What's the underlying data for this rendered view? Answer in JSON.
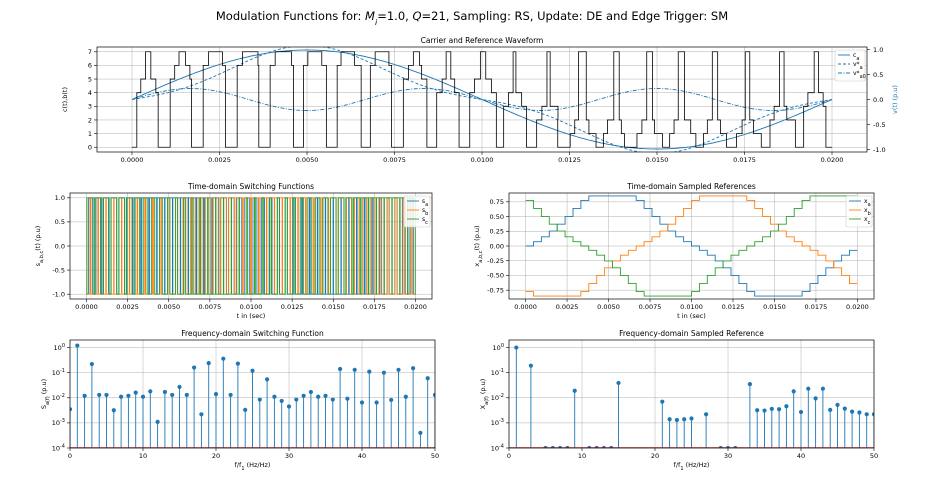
{
  "figure": {
    "suptitle": "Modulation Functions for: M_i=1.0, Q=21, Sampling: RS, Update: DE and Edge Trigger: SM"
  },
  "colors": {
    "blue": "#1f77b4",
    "orange": "#ff7f0e",
    "green": "#2ca02c",
    "grid": "#b0b0b0"
  },
  "chart_data": [
    {
      "id": "carrier",
      "type": "line",
      "title": "Carrier and Reference Waveform",
      "xlabel": "",
      "ylabel": "c(t),b(t)",
      "ylabel_right": "v(t) (p.u)",
      "xlim": [
        -0.001,
        0.021
      ],
      "ylim": [
        -0.35,
        7.35
      ],
      "ylim_right": [
        -1.05,
        1.05
      ],
      "xticks": [
        "0.0000",
        "0.0025",
        "0.0050",
        "0.0075",
        "0.0100",
        "0.0125",
        "0.0150",
        "0.0175",
        "0.0200"
      ],
      "yticks": [
        "0",
        "1",
        "2",
        "3",
        "4",
        "5",
        "6",
        "7"
      ],
      "yticks_right": [
        "-1.0",
        "-0.5",
        "0.0",
        "0.5",
        "1.0"
      ],
      "grid": true,
      "legend": "top-right",
      "series": [
        {
          "name": "c_a",
          "style": "solid",
          "color": "#1f77b4",
          "note": "sine, amplitude 1.0, period 0.02 s"
        },
        {
          "name": "v*_a",
          "style": "dashed",
          "color": "#1f77b4",
          "note": "third-harmonic modified reference"
        },
        {
          "name": "v*_a0",
          "style": "dashdot",
          "color": "#1f77b4",
          "note": "third-harmonic zero sequence, amplitude ~0.25"
        },
        {
          "name": "",
          "style": "solid",
          "color": "#000000",
          "note": "carrier staircase, levels 0..7, 21 periods"
        }
      ]
    },
    {
      "id": "switching",
      "type": "line",
      "title": "Time-domain Switching Functions",
      "xlabel": "t in (sec)",
      "ylabel": "s_{a,b,c}(t) (p.u)",
      "xlim": [
        -0.001,
        0.021
      ],
      "ylim": [
        -1.1,
        1.1
      ],
      "xticks": [
        "0.0000",
        "0.0025",
        "0.0050",
        "0.0075",
        "0.0100",
        "0.0125",
        "0.0150",
        "0.0175",
        "0.0200"
      ],
      "yticks": [
        "-1.0",
        "-0.5",
        "0.0",
        "0.5",
        "1.0"
      ],
      "grid": true,
      "legend": "top-right",
      "series": [
        {
          "name": "s_a",
          "color": "#1f77b4"
        },
        {
          "name": "s_b",
          "color": "#ff7f0e"
        },
        {
          "name": "s_c",
          "color": "#2ca02c"
        }
      ]
    },
    {
      "id": "sampled",
      "type": "line",
      "title": "Time-domain Sampled References",
      "xlabel": "t in (sec)",
      "ylabel": "x_{a,b,c}(t) (p.u)",
      "xlim": [
        -0.001,
        0.021
      ],
      "ylim": [
        -0.9,
        0.9
      ],
      "xticks": [
        "0.0000",
        "0.0025",
        "0.0050",
        "0.0075",
        "0.0100",
        "0.0125",
        "0.0150",
        "0.0175",
        "0.0200"
      ],
      "yticks": [
        "-0.75",
        "-0.50",
        "-0.25",
        "0.00",
        "0.25",
        "0.50",
        "0.75"
      ],
      "grid": true,
      "legend": "top-right",
      "series": [
        {
          "name": "x_a",
          "color": "#1f77b4",
          "note": "staircase of phase-a reference, 42 steps per period"
        },
        {
          "name": "x_b",
          "color": "#ff7f0e"
        },
        {
          "name": "x_c",
          "color": "#2ca02c"
        }
      ]
    },
    {
      "id": "sw_spectrum",
      "type": "scatter",
      "title": "Frequency-domain Switching Function",
      "xlabel": "f/f_1 (Hz/Hz)",
      "ylabel": "S_a(f) (p.u)",
      "xlim": [
        0,
        50
      ],
      "yscale": "log",
      "ylim": [
        0.0001,
        2.0
      ],
      "xticks": [
        "0",
        "10",
        "20",
        "30",
        "40",
        "50"
      ],
      "yticks": [
        "10^-4",
        "10^-3",
        "10^-2",
        "10^-1",
        "10^0"
      ],
      "grid": true,
      "x": [
        0,
        1,
        2,
        3,
        4,
        5,
        6,
        7,
        8,
        9,
        10,
        11,
        12,
        13,
        14,
        15,
        16,
        17,
        18,
        19,
        20,
        21,
        22,
        23,
        24,
        25,
        26,
        27,
        28,
        29,
        30,
        31,
        32,
        33,
        34,
        35,
        36,
        37,
        38,
        39,
        40,
        41,
        42,
        43,
        44,
        45,
        46,
        47,
        48,
        49,
        50
      ],
      "values": [
        0.0035,
        1.2,
        0.012,
        0.22,
        0.013,
        0.013,
        0.0032,
        0.011,
        0.012,
        0.016,
        0.011,
        0.018,
        0.0011,
        0.017,
        0.013,
        0.027,
        0.013,
        0.16,
        0.0022,
        0.24,
        0.014,
        0.36,
        0.013,
        0.23,
        0.0033,
        0.12,
        0.0085,
        0.054,
        0.011,
        0.0075,
        0.0045,
        0.0085,
        0.012,
        0.017,
        0.011,
        0.012,
        0.0085,
        0.14,
        0.0092,
        0.13,
        0.0065,
        0.11,
        0.0065,
        0.1,
        0.0082,
        0.13,
        0.011,
        0.15,
        0.0004,
        0.06,
        0.013
      ]
    },
    {
      "id": "ref_spectrum",
      "type": "scatter",
      "title": "Frequency-domain Sampled Reference",
      "xlabel": "f/f_1 (Hz/Hz)",
      "ylabel": "X_a(f) (p.u)",
      "xlim": [
        0,
        50
      ],
      "yscale": "log",
      "ylim": [
        0.0001,
        2.0
      ],
      "xticks": [
        "0",
        "10",
        "20",
        "30",
        "40",
        "50"
      ],
      "yticks": [
        "10^-4",
        "10^-3",
        "10^-2",
        "10^-1",
        "10^0"
      ],
      "grid": true,
      "x": [
        1,
        3,
        5,
        6,
        7,
        8,
        9,
        11,
        12,
        13,
        14,
        15,
        21,
        22,
        23,
        24,
        25,
        27,
        29,
        30,
        31,
        33,
        34,
        35,
        36,
        37,
        38,
        39,
        40,
        41,
        42,
        43,
        44,
        45,
        46,
        47,
        48,
        49,
        50
      ],
      "values": [
        1.0,
        0.19,
        0.0001,
        0.0001,
        0.0001,
        0.0001,
        0.019,
        0.0001,
        0.0001,
        0.0001,
        0.0001,
        0.039,
        0.007,
        0.0014,
        0.0013,
        0.0014,
        0.0015,
        0.0022,
        0.0001,
        0.0001,
        0.0001,
        0.035,
        0.0032,
        0.0031,
        0.0036,
        0.0035,
        0.0046,
        0.018,
        0.0027,
        0.023,
        0.0095,
        0.023,
        0.0033,
        0.0052,
        0.0037,
        0.0028,
        0.0026,
        0.0022,
        0.0022
      ]
    }
  ]
}
